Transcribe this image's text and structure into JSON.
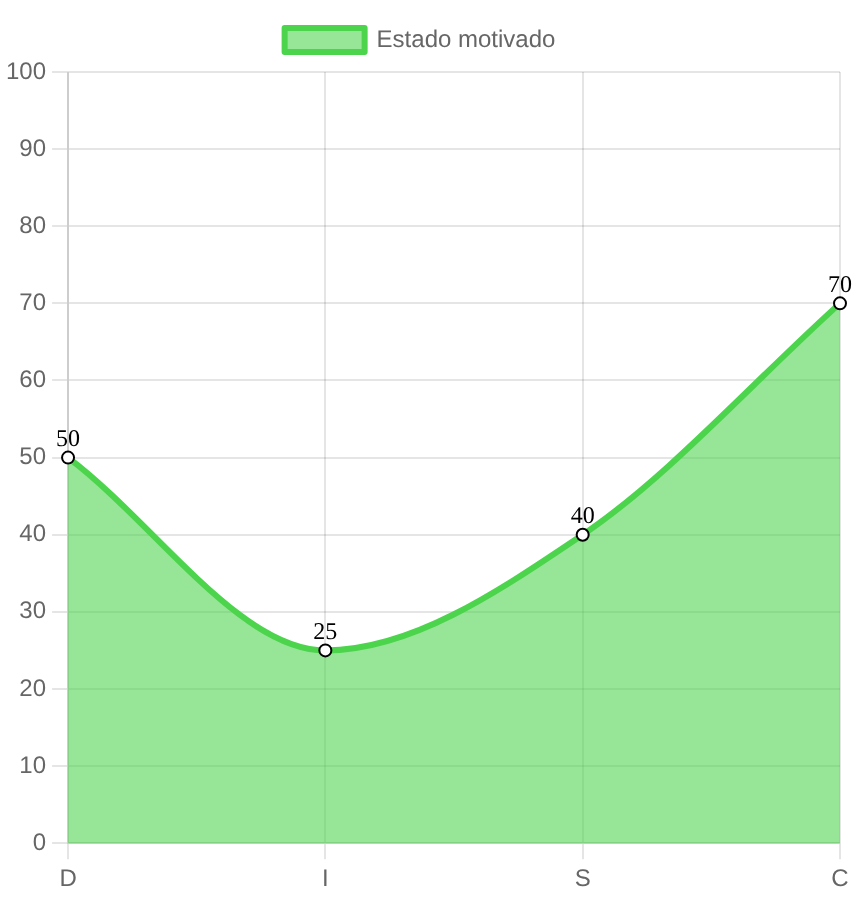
{
  "chart_data": {
    "type": "area",
    "categories": [
      "D",
      "I",
      "S",
      "C"
    ],
    "series": [
      {
        "name": "Estado motivado",
        "color": "#4cd44c",
        "values": [
          50,
          25,
          40,
          70
        ]
      }
    ],
    "ylim": [
      0,
      100
    ],
    "yticks": [
      0,
      10,
      20,
      30,
      40,
      50,
      60,
      70,
      80,
      90,
      100
    ],
    "grid": true,
    "legend": "top",
    "marker": "circle",
    "data_labels": true
  }
}
